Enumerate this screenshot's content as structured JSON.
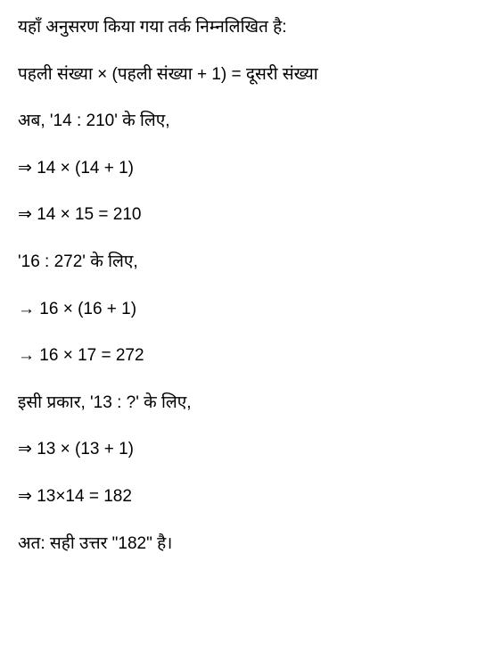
{
  "document": {
    "type": "math-solution",
    "language": "hindi",
    "text_color": "#000000",
    "background_color": "#ffffff",
    "font_size": 19,
    "line_spacing": 26,
    "lines": [
      "यहाँ अनुसरण किया गया तर्क निम्नलिखित है:",
      "पहली संख्या × (पहली संख्या + 1) = दूसरी संख्या",
      "अब, '14 : 210' के लिए,",
      "⇒ 14 × (14 + 1)",
      "⇒ 14 × 15 = 210",
      "'16 : 272' के लिए,",
      "→ 16 × (16 + 1)",
      "→ 16 × 17 = 272",
      "इसी प्रकार, '13 : ?' के लिए,",
      "⇒ 13 × (13 + 1)",
      "⇒ 13×14 = 182",
      "अत: सही उत्तर \"182\" है।"
    ]
  }
}
